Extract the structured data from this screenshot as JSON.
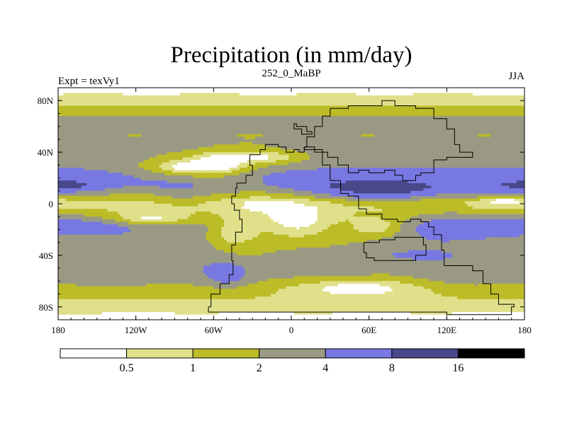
{
  "chart_data": {
    "type": "heatmap",
    "title": "Precipitation (in mm/day)",
    "left_label": "Expt = texVy1",
    "center_label": "252_0_MaBP",
    "right_label": "JJA",
    "xlabel": "",
    "ylabel": "",
    "xlim": [
      -180,
      180
    ],
    "ylim": [
      -90,
      90
    ],
    "x_ticks": [
      {
        "value": -180,
        "label": "180"
      },
      {
        "value": -120,
        "label": "120W"
      },
      {
        "value": -60,
        "label": "60W"
      },
      {
        "value": 0,
        "label": "0"
      },
      {
        "value": 60,
        "label": "60E"
      },
      {
        "value": 120,
        "label": "120E"
      },
      {
        "value": 180,
        "label": "180"
      }
    ],
    "y_ticks": [
      {
        "value": 80,
        "label": "80N"
      },
      {
        "value": 40,
        "label": "40N"
      },
      {
        "value": 0,
        "label": "0"
      },
      {
        "value": -40,
        "label": "40S"
      },
      {
        "value": -80,
        "label": "80S"
      }
    ],
    "levels": [
      0.5,
      1,
      2,
      4,
      8,
      16
    ],
    "level_labels": [
      "0.5",
      "1",
      "2",
      "4",
      "8",
      "16"
    ],
    "colors": [
      "#ffffff",
      "#e0e08a",
      "#bcbc28",
      "#9a9a84",
      "#7878e2",
      "#48488a",
      "#000000"
    ],
    "axis_color": "#000000",
    "coast_color": "#000000",
    "zonal_base": [
      {
        "lat": 90,
        "value": 0.3
      },
      {
        "lat": 80,
        "value": 0.7
      },
      {
        "lat": 72,
        "value": 1.3
      },
      {
        "lat": 62,
        "value": 3.0
      },
      {
        "lat": 54,
        "value": 2.2
      },
      {
        "lat": 46,
        "value": 2.6
      },
      {
        "lat": 38,
        "value": 3.0
      },
      {
        "lat": 30,
        "value": 3.5
      },
      {
        "lat": 22,
        "value": 5.2
      },
      {
        "lat": 14,
        "value": 4.6
      },
      {
        "lat": 8,
        "value": 2.2
      },
      {
        "lat": 2,
        "value": 0.8
      },
      {
        "lat": -4,
        "value": 1.0
      },
      {
        "lat": -10,
        "value": 2.5
      },
      {
        "lat": -18,
        "value": 5.0
      },
      {
        "lat": -26,
        "value": 3.8
      },
      {
        "lat": -34,
        "value": 3.2
      },
      {
        "lat": -42,
        "value": 3.0
      },
      {
        "lat": -50,
        "value": 3.5
      },
      {
        "lat": -58,
        "value": 2.8
      },
      {
        "lat": -66,
        "value": 1.6
      },
      {
        "lat": -74,
        "value": 1.0
      },
      {
        "lat": -82,
        "value": 0.6
      },
      {
        "lat": -90,
        "value": 0.3
      }
    ],
    "anomalies": [
      {
        "lon": -80,
        "lat": 28,
        "rx": 45,
        "ry": 9,
        "factor": 0.1
      },
      {
        "lon": -55,
        "lat": 32,
        "rx": 30,
        "ry": 12,
        "factor": 0.1
      },
      {
        "lon": -110,
        "lat": -12,
        "rx": 50,
        "ry": 8,
        "factor": 0.12
      },
      {
        "lon": -45,
        "lat": -22,
        "rx": 25,
        "ry": 15,
        "factor": 0.2
      },
      {
        "lon": 5,
        "lat": -15,
        "rx": 55,
        "ry": 22,
        "factor": 0.08
      },
      {
        "lon": 65,
        "lat": -18,
        "rx": 30,
        "ry": 10,
        "factor": 0.15
      },
      {
        "lon": 50,
        "lat": -65,
        "rx": 60,
        "ry": 10,
        "factor": 0.15
      },
      {
        "lon": -20,
        "lat": 36,
        "rx": 40,
        "ry": 6,
        "factor": 0.2
      },
      {
        "lon": 45,
        "lat": 8,
        "rx": 38,
        "ry": 10,
        "factor": 2.6
      },
      {
        "lon": 75,
        "lat": 8,
        "rx": 28,
        "ry": 8,
        "factor": 2.4
      },
      {
        "lon": 140,
        "lat": 10,
        "rx": 35,
        "ry": 8,
        "factor": 1.9
      },
      {
        "lon": -170,
        "lat": 14,
        "rx": 25,
        "ry": 5,
        "factor": 1.8
      },
      {
        "lon": -155,
        "lat": -15,
        "rx": 60,
        "ry": 5,
        "factor": 1.7
      },
      {
        "lon": -50,
        "lat": -55,
        "rx": 12,
        "ry": 8,
        "factor": 2.2
      },
      {
        "lon": 90,
        "lat": -40,
        "rx": 45,
        "ry": 4,
        "factor": 1.5
      },
      {
        "lon": 120,
        "lat": -20,
        "rx": 30,
        "ry": 8,
        "factor": 1.5
      },
      {
        "lon": -90,
        "lat": 2,
        "rx": 30,
        "ry": 4,
        "factor": 1.6
      },
      {
        "lon": 165,
        "lat": 2,
        "rx": 18,
        "ry": 4,
        "factor": 0.3
      }
    ],
    "coastlines": [
      [
        [
          -64,
          -80
        ],
        [
          -62,
          -70
        ],
        [
          -55,
          -62
        ],
        [
          -48,
          -55
        ],
        [
          -45,
          -44
        ],
        [
          -46,
          -32
        ],
        [
          -43,
          -22
        ],
        [
          -38,
          -12
        ],
        [
          -40,
          -5
        ],
        [
          -44,
          0
        ],
        [
          -46,
          6
        ],
        [
          -43,
          12
        ],
        [
          -42,
          16
        ],
        [
          -35,
          22
        ],
        [
          -30,
          30
        ],
        [
          -32,
          38
        ],
        [
          -24,
          42
        ],
        [
          -20,
          46
        ],
        [
          -10,
          44
        ],
        [
          -4,
          40
        ],
        [
          2,
          42
        ],
        [
          6,
          40
        ],
        [
          10,
          44
        ],
        [
          18,
          42
        ],
        [
          24,
          30
        ],
        [
          30,
          18
        ],
        [
          38,
          8
        ],
        [
          44,
          6
        ],
        [
          52,
          -4
        ],
        [
          58,
          -8
        ],
        [
          70,
          -12
        ],
        [
          82,
          -14
        ],
        [
          92,
          -12
        ],
        [
          100,
          -14
        ],
        [
          106,
          -18
        ],
        [
          110,
          -24
        ],
        [
          116,
          -36
        ],
        [
          118,
          -48
        ],
        [
          132,
          -48
        ],
        [
          140,
          -52
        ],
        [
          148,
          -62
        ],
        [
          154,
          -70
        ],
        [
          160,
          -78
        ],
        [
          172,
          -80
        ],
        [
          170,
          -86
        ],
        [
          150,
          -86
        ],
        [
          120,
          -84
        ],
        [
          60,
          -84
        ],
        [
          0,
          -84
        ],
        [
          -64,
          -84
        ],
        [
          -64,
          -80
        ]
      ],
      [
        [
          10,
          44
        ],
        [
          12,
          52
        ],
        [
          18,
          60
        ],
        [
          24,
          68
        ],
        [
          30,
          74
        ],
        [
          44,
          76
        ],
        [
          60,
          76
        ],
        [
          70,
          80
        ],
        [
          80,
          76
        ],
        [
          96,
          74
        ],
        [
          110,
          66
        ],
        [
          120,
          58
        ],
        [
          126,
          46
        ],
        [
          130,
          40
        ],
        [
          140,
          36
        ],
        [
          120,
          34
        ],
        [
          110,
          24
        ],
        [
          100,
          22
        ],
        [
          96,
          18
        ],
        [
          86,
          22
        ],
        [
          80,
          26
        ],
        [
          72,
          24
        ],
        [
          60,
          26
        ],
        [
          52,
          24
        ],
        [
          44,
          30
        ],
        [
          36,
          36
        ],
        [
          28,
          40
        ],
        [
          18,
          42
        ],
        [
          10,
          44
        ]
      ],
      [
        [
          56,
          -30
        ],
        [
          68,
          -28
        ],
        [
          80,
          -26
        ],
        [
          94,
          -26
        ],
        [
          102,
          -32
        ],
        [
          104,
          -40
        ],
        [
          96,
          -44
        ],
        [
          84,
          -44
        ],
        [
          74,
          -44
        ],
        [
          64,
          -42
        ],
        [
          58,
          -38
        ],
        [
          56,
          -30
        ]
      ],
      [
        [
          16,
          56
        ],
        [
          12,
          60
        ],
        [
          4,
          62
        ],
        [
          2,
          58
        ],
        [
          8,
          54
        ],
        [
          16,
          56
        ]
      ]
    ]
  }
}
